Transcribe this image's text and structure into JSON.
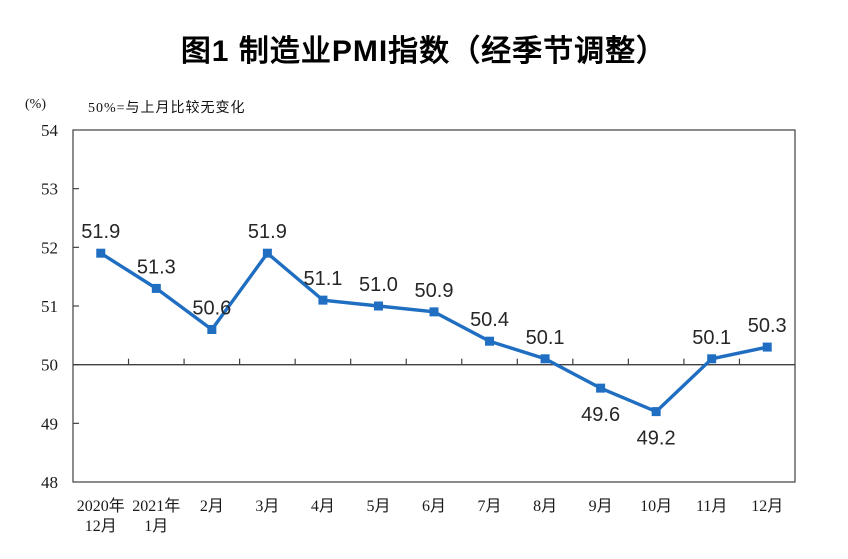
{
  "figure": {
    "title": "图1 制造业PMI指数（经季节调整）",
    "unit_label": "(%)",
    "note": "50%=与上月比较无变化"
  },
  "chart_data": {
    "type": "line",
    "title": "图1 制造业PMI指数（经季节调整）",
    "ylabel": "(%)",
    "xlabel": "",
    "annotation": "50%=与上月比较无变化",
    "categories": [
      "2020年12月",
      "2021年1月",
      "2月",
      "3月",
      "4月",
      "5月",
      "6月",
      "7月",
      "8月",
      "9月",
      "10月",
      "11月",
      "12月"
    ],
    "category_lines": [
      [
        "2020年",
        "12月"
      ],
      [
        "2021年",
        "1月"
      ],
      [
        "2月"
      ],
      [
        "3月"
      ],
      [
        "4月"
      ],
      [
        "5月"
      ],
      [
        "6月"
      ],
      [
        "7月"
      ],
      [
        "8月"
      ],
      [
        "9月"
      ],
      [
        "10月"
      ],
      [
        "11月"
      ],
      [
        "12月"
      ]
    ],
    "values": [
      51.9,
      51.3,
      50.6,
      51.9,
      51.1,
      51.0,
      50.9,
      50.4,
      50.1,
      49.6,
      49.2,
      50.1,
      50.3
    ],
    "labels_below_indices": [
      9,
      10
    ],
    "ylim": [
      48,
      54
    ],
    "yticks": [
      48,
      49,
      50,
      51,
      52,
      53,
      54
    ],
    "baseline_value": 50,
    "grid": false,
    "legend": "none",
    "line_color": "#1F6EC1",
    "axis_color": "#3F3F3F",
    "label_color": "#262626"
  }
}
